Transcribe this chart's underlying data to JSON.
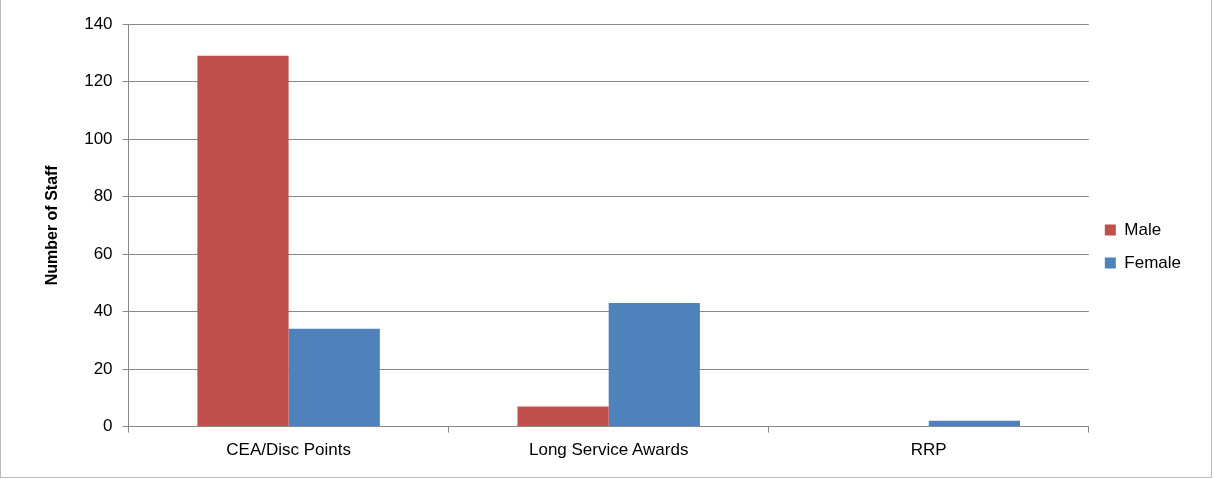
{
  "chart_data": {
    "type": "bar",
    "ylabel": "Number of Staff",
    "categories": [
      "CEA/Disc Points",
      "Long Service Awards",
      "RRP"
    ],
    "series": [
      {
        "name": "Male",
        "color": "#c0504d",
        "values": [
          129,
          7,
          0
        ]
      },
      {
        "name": "Female",
        "color": "#4f81bd",
        "values": [
          34,
          43,
          2
        ]
      }
    ],
    "ylim": [
      0,
      140
    ],
    "yticks": [
      0,
      20,
      40,
      60,
      80,
      100,
      120,
      140
    ],
    "grid": "y",
    "legend": "right"
  }
}
